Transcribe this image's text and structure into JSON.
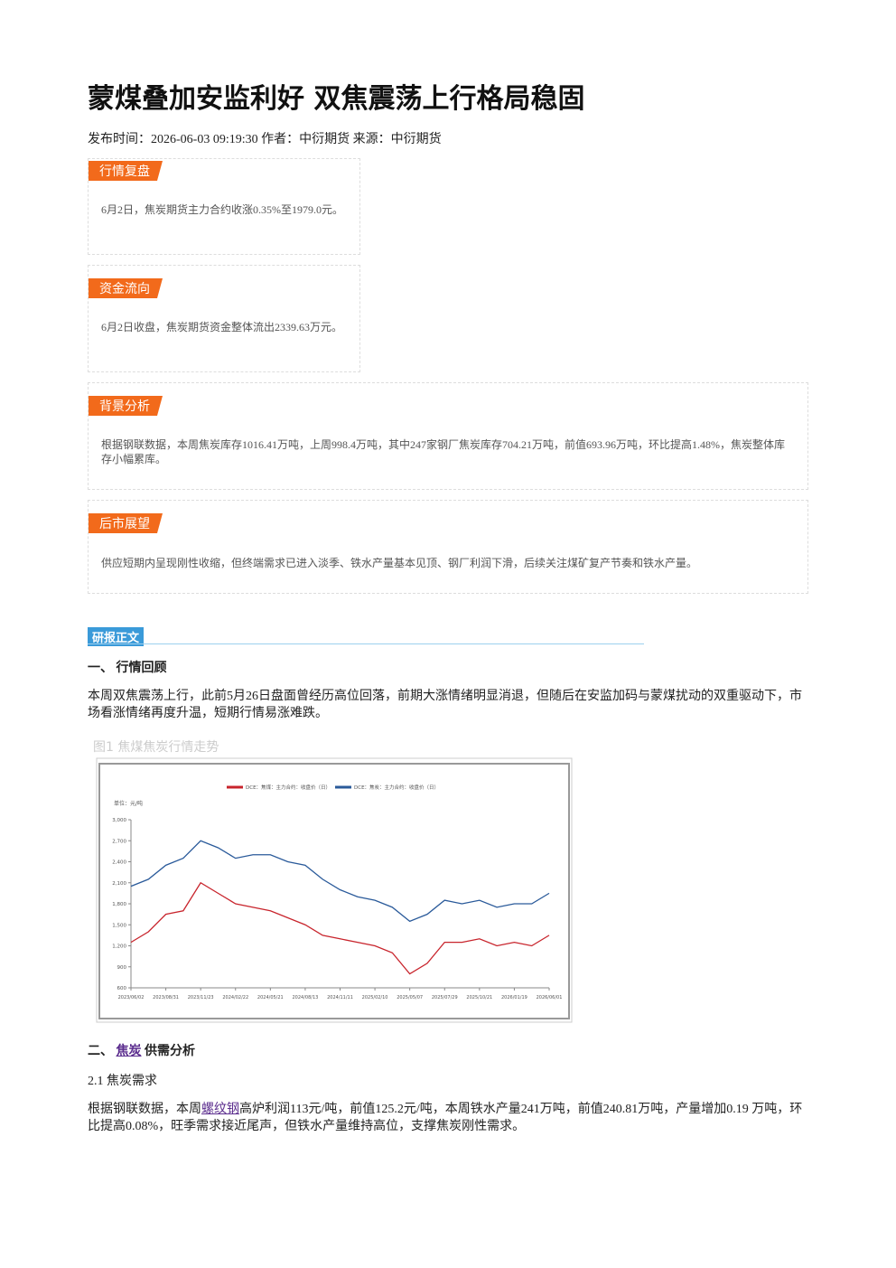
{
  "header": {
    "title": "蒙煤叠加安监利好 双焦震荡上行格局稳固",
    "meta": "发布时间：2026-06-03 09:19:30 作者：中衍期货 来源：中衍期货"
  },
  "boxes": [
    {
      "tag": "行情复盘",
      "text": "6月2日，焦炭期货主力合约收涨0.35%至1979.0元。"
    },
    {
      "tag": "资金流向",
      "text": "6月2日收盘，焦炭期货资金整体流出2339.63万元。"
    },
    {
      "tag": "背景分析",
      "text": "根据钢联数据，本周焦炭库存1016.41万吨，上周998.4万吨，其中247家钢厂焦炭库存704.21万吨，前值693.96万吨，环比提高1.48%，焦炭整体库存小幅累库。"
    },
    {
      "tag": "后市展望",
      "text": "供应短期内呈现刚性收缩，但终端需求已进入淡季、铁水产量基本见顶、钢厂利润下滑，后续关注煤矿复产节奏和铁水产量。"
    }
  ],
  "report": {
    "tag": "研报正文",
    "section1": {
      "heading": "一、 行情回顾",
      "text": "本周双焦震荡上行，此前5月26日盘面曾经历高位回落，前期大涨情绪明显消退，但随后在安监加码与蒙煤扰动的双重驱动下，市场看涨情绪再度升温，短期行情易涨难跌。"
    },
    "figure": {
      "caption": "图1 焦煤焦炭行情走势"
    },
    "section2": {
      "prefix": "二、",
      "link": "焦炭",
      "suffix": "供需分析"
    },
    "subsection": {
      "heading": "2.1 焦炭需求",
      "before": "根据钢联数据，本周",
      "link": "螺纹钢",
      "after": "高炉利润113元/吨，前值125.2元/吨，本周铁水产量241万吨，前值240.81万吨，产量增加0.19 万吨，环比提高0.08%，旺季需求接近尾声，但铁水产量维持高位，支撑焦炭刚性需求。"
    }
  },
  "chart_data": {
    "type": "line",
    "unit": "单位：元/吨",
    "categories": [
      "2023/06/02",
      null,
      "2023/08/31",
      null,
      "2023/11/23",
      null,
      "2024/02/22",
      null,
      "2024/05/21",
      null,
      "2024/08/13",
      null,
      "2024/11/11",
      null,
      "2025/02/10",
      null,
      "2025/05/07",
      null,
      "2025/07/29",
      null,
      "2025/10/21",
      null,
      "2026/01/19",
      null,
      "2026/06/01"
    ],
    "series": [
      {
        "name": "DCE：焦煤：主力合约：收盘价（日）",
        "color": "#c8242c",
        "values": [
          1250,
          1400,
          1650,
          1700,
          2100,
          1950,
          1800,
          1750,
          1700,
          1600,
          1500,
          1350,
          1300,
          1250,
          1200,
          1100,
          800,
          950,
          1250,
          1250,
          1300,
          1200,
          1250,
          1200,
          1350
        ]
      },
      {
        "name": "DCE：焦炭：主力合约：收盘价（日）",
        "color": "#2a5a9a",
        "values": [
          2050,
          2150,
          2350,
          2450,
          2700,
          2600,
          2450,
          2500,
          2500,
          2400,
          2350,
          2150,
          2000,
          1900,
          1850,
          1750,
          1550,
          1650,
          1850,
          1800,
          1850,
          1750,
          1800,
          1800,
          1950
        ]
      }
    ],
    "ylim": [
      600,
      3000
    ],
    "yticks": [
      {
        "value": 3000,
        "label": "3,000"
      },
      {
        "value": 2700,
        "label": "2,700"
      },
      {
        "value": 2400,
        "label": "2,400"
      },
      {
        "value": 2100,
        "label": "2,100"
      },
      {
        "value": 1800,
        "label": "1,800"
      },
      {
        "value": 1500,
        "label": "1,500"
      },
      {
        "value": 1200,
        "label": "1,200"
      },
      900,
      600
    ]
  }
}
